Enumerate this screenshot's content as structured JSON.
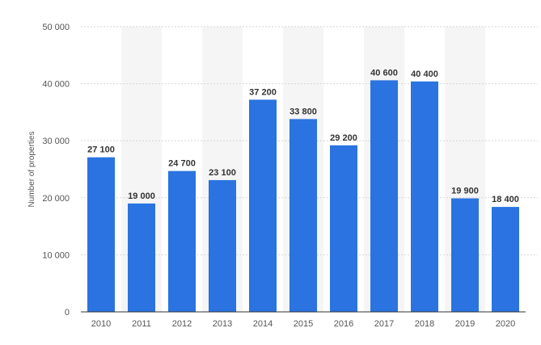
{
  "chart_data": {
    "type": "bar",
    "title": "",
    "xlabel": "",
    "ylabel": "Number of properties",
    "categories": [
      "2010",
      "2011",
      "2012",
      "2013",
      "2014",
      "2015",
      "2016",
      "2017",
      "2018",
      "2019",
      "2020"
    ],
    "values": [
      27100,
      19000,
      24700,
      23100,
      37200,
      33800,
      29200,
      40600,
      40400,
      19900,
      18400
    ],
    "value_labels": [
      "27 100",
      "19 000",
      "24 700",
      "23 100",
      "37 200",
      "33 800",
      "29 200",
      "40 600",
      "40 400",
      "19 900",
      "18 400"
    ],
    "ylim": [
      0,
      50000
    ],
    "yticks": [
      0,
      10000,
      20000,
      30000,
      40000,
      50000
    ],
    "ytick_labels": [
      "0",
      "10 000",
      "20 000",
      "30 000",
      "40 000",
      "50 000"
    ],
    "grid": true,
    "bar_color": "#2a73e0",
    "band_color": "#f5f5f5"
  }
}
